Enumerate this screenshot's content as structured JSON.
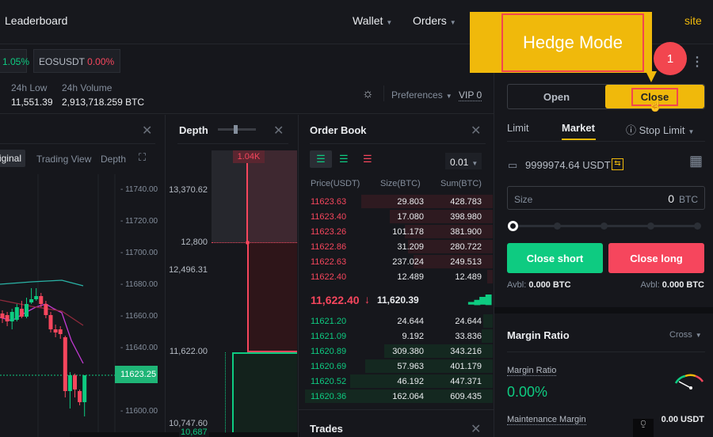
{
  "header": {
    "leaderboard": "Leaderboard",
    "wallet": "Wallet",
    "orders": "Orders",
    "site_partial": "site"
  },
  "tickers": [
    {
      "change": "1.05%"
    },
    {
      "symbol": "EOSUSDT",
      "change": "0.00%"
    }
  ],
  "stats": {
    "low_label": "24h Low",
    "low_value": "11,551.39",
    "vol_label": "24h Volume",
    "vol_value": "2,913,718.259 BTC",
    "preferences": "Preferences",
    "vip": "VIP 0"
  },
  "chart": {
    "tabs": [
      "Original",
      "Trading View",
      "Depth"
    ],
    "price_ticks": [
      "11740.00",
      "11720.00",
      "11700.00",
      "11680.00",
      "11660.00",
      "11640.00",
      "11600.00"
    ],
    "last_price": "11623.25",
    "candles": [
      [
        11662,
        11664,
        11656,
        11659
      ],
      [
        11661,
        11663,
        11654,
        11657
      ],
      [
        11657,
        11665,
        11652,
        11663
      ],
      [
        11658,
        11668,
        11657,
        11666
      ],
      [
        11665,
        11670,
        11659,
        11660
      ],
      [
        11660,
        11672,
        11659,
        11668
      ],
      [
        11669,
        11678,
        11668,
        11671
      ],
      [
        11671,
        11678,
        11670,
        11673
      ],
      [
        11673,
        11675,
        11666,
        11668
      ],
      [
        11668,
        11670,
        11659,
        11661
      ],
      [
        11661,
        11663,
        11650,
        11652
      ],
      [
        11652,
        11655,
        11647,
        11650
      ],
      [
        11652,
        11654,
        11646,
        11649
      ],
      [
        11647,
        11648,
        11609,
        11613
      ],
      [
        11613,
        11625,
        11602,
        11623
      ],
      [
        11623,
        11624,
        11609,
        11614
      ],
      [
        11613,
        11614,
        11604,
        11606
      ],
      [
        11606,
        11623,
        11597,
        11623
      ]
    ],
    "colors": {
      "up": "#0ecb81",
      "down": "#f6465d"
    }
  },
  "depth": {
    "title": "Depth",
    "peak": "1.04K",
    "ticks": [
      "13,370.62",
      "12,800",
      "12,496.31",
      "11,622.00",
      "10,747.60"
    ],
    "bottom_partial": "10,687"
  },
  "orderbook": {
    "title": "Order Book",
    "precision": "0.01",
    "headers": [
      "Price(USDT)",
      "Size(BTC)",
      "Sum(BTC)"
    ],
    "asks": [
      [
        "11623.63",
        "29.803",
        "428.783"
      ],
      [
        "11623.40",
        "17.080",
        "398.980"
      ],
      [
        "11623.26",
        "101.178",
        "381.900"
      ],
      [
        "11622.86",
        "31.209",
        "280.722"
      ],
      [
        "11622.63",
        "237.024",
        "249.513"
      ],
      [
        "11622.40",
        "12.489",
        "12.489"
      ]
    ],
    "asks_depth": [
      0.7,
      0.55,
      0.47,
      0.45,
      0.42,
      0.03
    ],
    "last": "11,622.40",
    "arrow": "↓",
    "mark": "11,620.39",
    "bids": [
      [
        "11621.20",
        "24.644",
        "24.644"
      ],
      [
        "11621.09",
        "9.192",
        "33.836"
      ],
      [
        "11620.89",
        "309.380",
        "343.216"
      ],
      [
        "11620.69",
        "57.963",
        "401.179"
      ],
      [
        "11620.52",
        "46.192",
        "447.371"
      ],
      [
        "11620.36",
        "162.064",
        "609.435"
      ]
    ],
    "bids_depth": [
      0.05,
      0.06,
      0.58,
      0.68,
      0.76,
      1.0
    ]
  },
  "trades": {
    "title": "Trades"
  },
  "callout": {
    "text": "Hedge Mode",
    "step": "1"
  },
  "order": {
    "open": "Open",
    "close": "Close",
    "tabs": [
      "Limit",
      "Market",
      "Stop Limit"
    ],
    "balance": "9999974.64 USDT",
    "size_placeholder": "Size",
    "size_value": "0",
    "size_unit": "BTC",
    "slider_percent": 0,
    "close_short": "Close short",
    "close_long": "Close long",
    "avbl_label": "Avbl:",
    "avbl_short": "0.000 BTC",
    "avbl_long": "0.000 BTC"
  },
  "margin": {
    "title": "Margin Ratio",
    "mode": "Cross",
    "ratio_label": "Margin Ratio",
    "ratio_value": "0.00%",
    "maint_label": "Maintenance Margin",
    "maint_value": "0.00 USDT"
  }
}
